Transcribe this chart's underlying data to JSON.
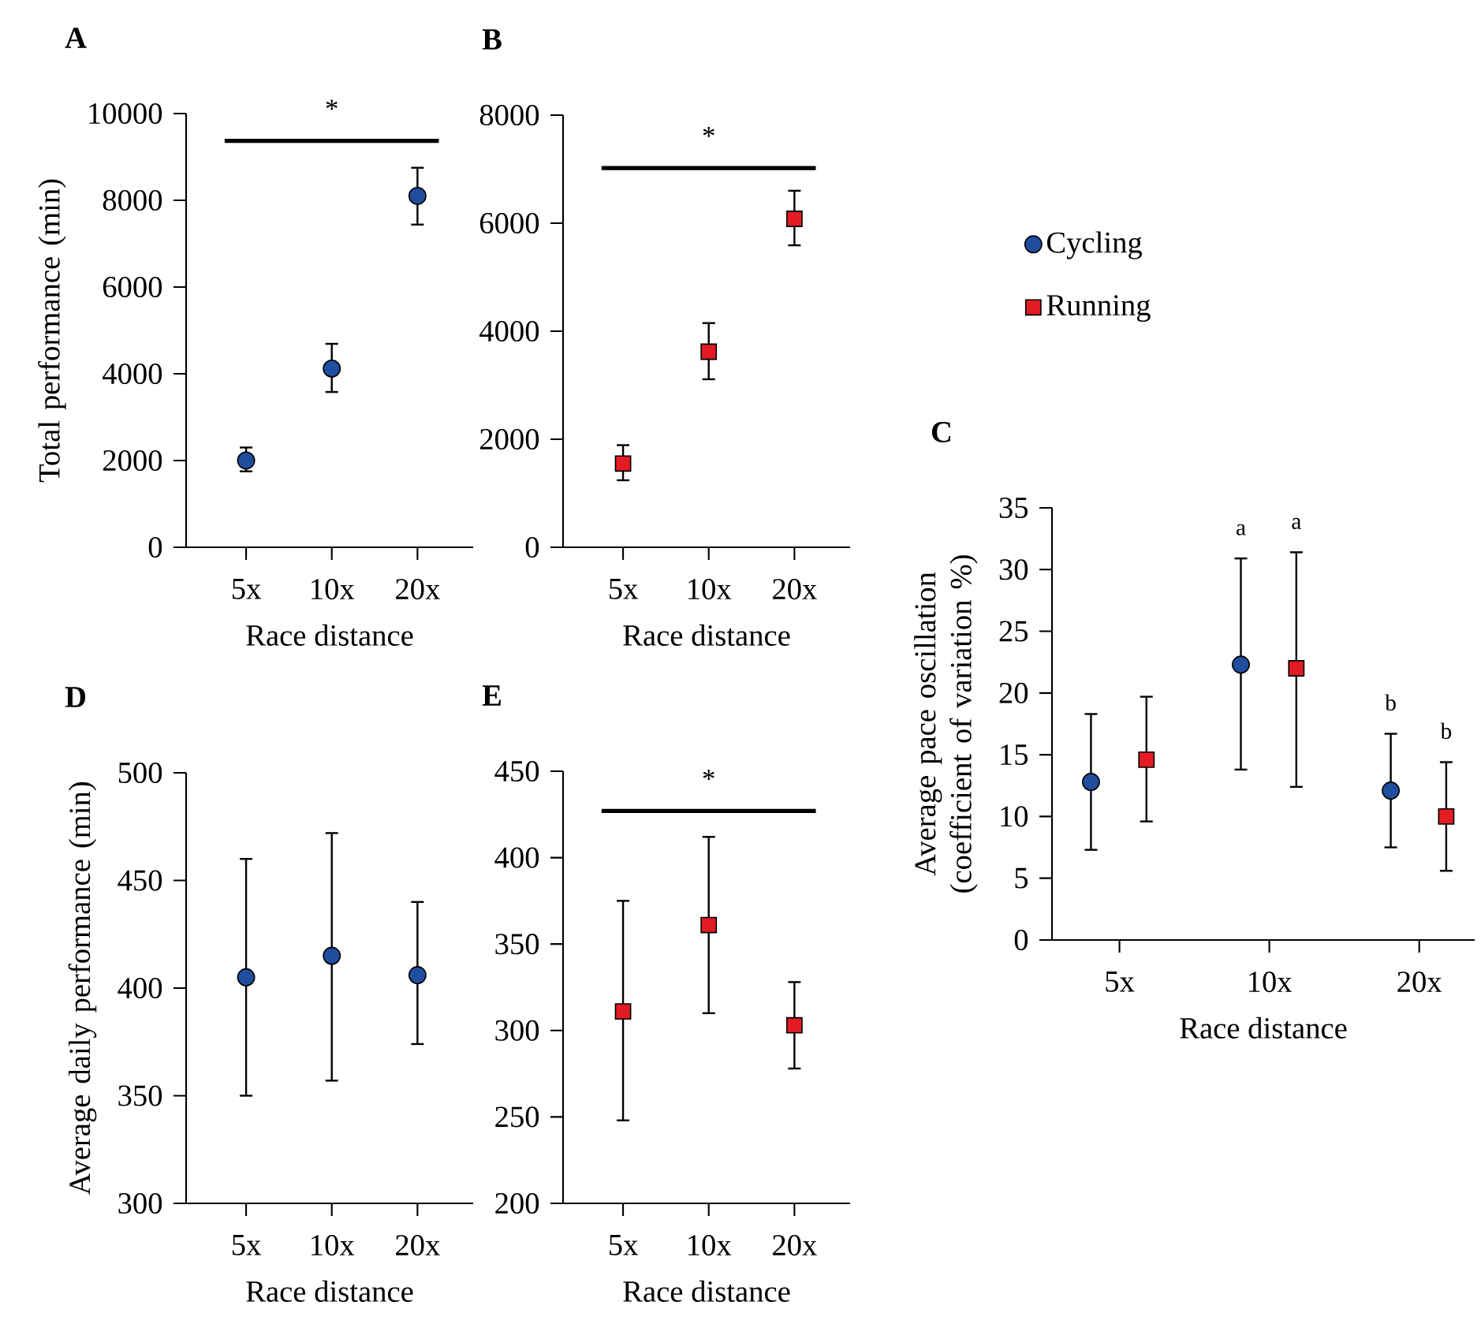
{
  "chart_data": [
    {
      "type": "scatter",
      "title": "A",
      "xlabel": "Race distance",
      "ylabel": "Total performance (min)",
      "categories": [
        "5x",
        "10x",
        "20x"
      ],
      "series": [
        {
          "color": "#1f4e9e",
          "marker": "circle",
          "values": [
            2000,
            4120,
            8100
          ],
          "errors": [
            [
              1750,
              2300
            ],
            [
              3580,
              4690
            ],
            [
              7440,
              8750
            ]
          ]
        }
      ],
      "ylim": [
        0,
        10000
      ],
      "yticks": [
        0,
        2000,
        4000,
        6000,
        8000,
        10000
      ],
      "ref_lines": [
        {
          "axis": "y",
          "value": 9370,
          "label": "*"
        }
      ]
    },
    {
      "type": "scatter",
      "title": "B",
      "xlabel": "Race distance",
      "categories": [
        "5x",
        "10x",
        "20x"
      ],
      "series": [
        {
          "color": "#e31b23",
          "marker": "square",
          "values": [
            1550,
            3620,
            6080
          ],
          "errors": [
            [
              1240,
              1890
            ],
            [
              3110,
              4150
            ],
            [
              5590,
              6600
            ]
          ]
        }
      ],
      "ylim": [
        0,
        8000
      ],
      "yticks": [
        0,
        2000,
        4000,
        6000,
        8000
      ],
      "ref_lines": [
        {
          "axis": "y",
          "value": 7020,
          "label": "*"
        }
      ]
    },
    {
      "type": "scatter",
      "title": "C",
      "xlabel": "Race distance",
      "ylabel": "Average pace oscillation (coefficient of variation %)",
      "categories": [
        "5x",
        "10x",
        "20x"
      ],
      "series": [
        {
          "name": "Cycling",
          "color": "#1f4e9e",
          "marker": "circle",
          "values": [
            12.8,
            22.3,
            12.1
          ],
          "errors": [
            [
              7.3,
              18.3
            ],
            [
              13.8,
              30.9
            ],
            [
              7.5,
              16.7
            ]
          ]
        },
        {
          "name": "Running",
          "color": "#e31b23",
          "marker": "square",
          "values": [
            14.6,
            22.0,
            10.0
          ],
          "errors": [
            [
              9.6,
              19.7
            ],
            [
              12.4,
              31.4
            ],
            [
              5.6,
              14.4
            ]
          ]
        }
      ],
      "ylim": [
        0,
        35
      ],
      "yticks": [
        0,
        5,
        10,
        15,
        20,
        25,
        30,
        35
      ],
      "legend": "top",
      "annotations": [
        "a",
        "a",
        "b",
        "b"
      ]
    },
    {
      "type": "scatter",
      "title": "D",
      "xlabel": "Race distance",
      "ylabel": "Average daily performance (min)",
      "categories": [
        "5x",
        "10x",
        "20x"
      ],
      "series": [
        {
          "color": "#1f4e9e",
          "marker": "circle",
          "values": [
            405,
            415,
            406
          ],
          "errors": [
            [
              350,
              460
            ],
            [
              357,
              472
            ],
            [
              374,
              440
            ]
          ]
        }
      ],
      "ylim": [
        300,
        500
      ],
      "yticks": [
        300,
        350,
        400,
        450,
        500
      ]
    },
    {
      "type": "scatter",
      "title": "E",
      "xlabel": "Race distance",
      "categories": [
        "5x",
        "10x",
        "20x"
      ],
      "series": [
        {
          "color": "#e31b23",
          "marker": "square",
          "values": [
            311,
            361,
            303
          ],
          "errors": [
            [
              248,
              375
            ],
            [
              310,
              412
            ],
            [
              278,
              328
            ]
          ]
        }
      ],
      "ylim": [
        200,
        450
      ],
      "yticks": [
        200,
        250,
        300,
        350,
        400,
        450
      ],
      "ref_lines": [
        {
          "axis": "y",
          "value": 427,
          "label": "*"
        }
      ]
    }
  ]
}
